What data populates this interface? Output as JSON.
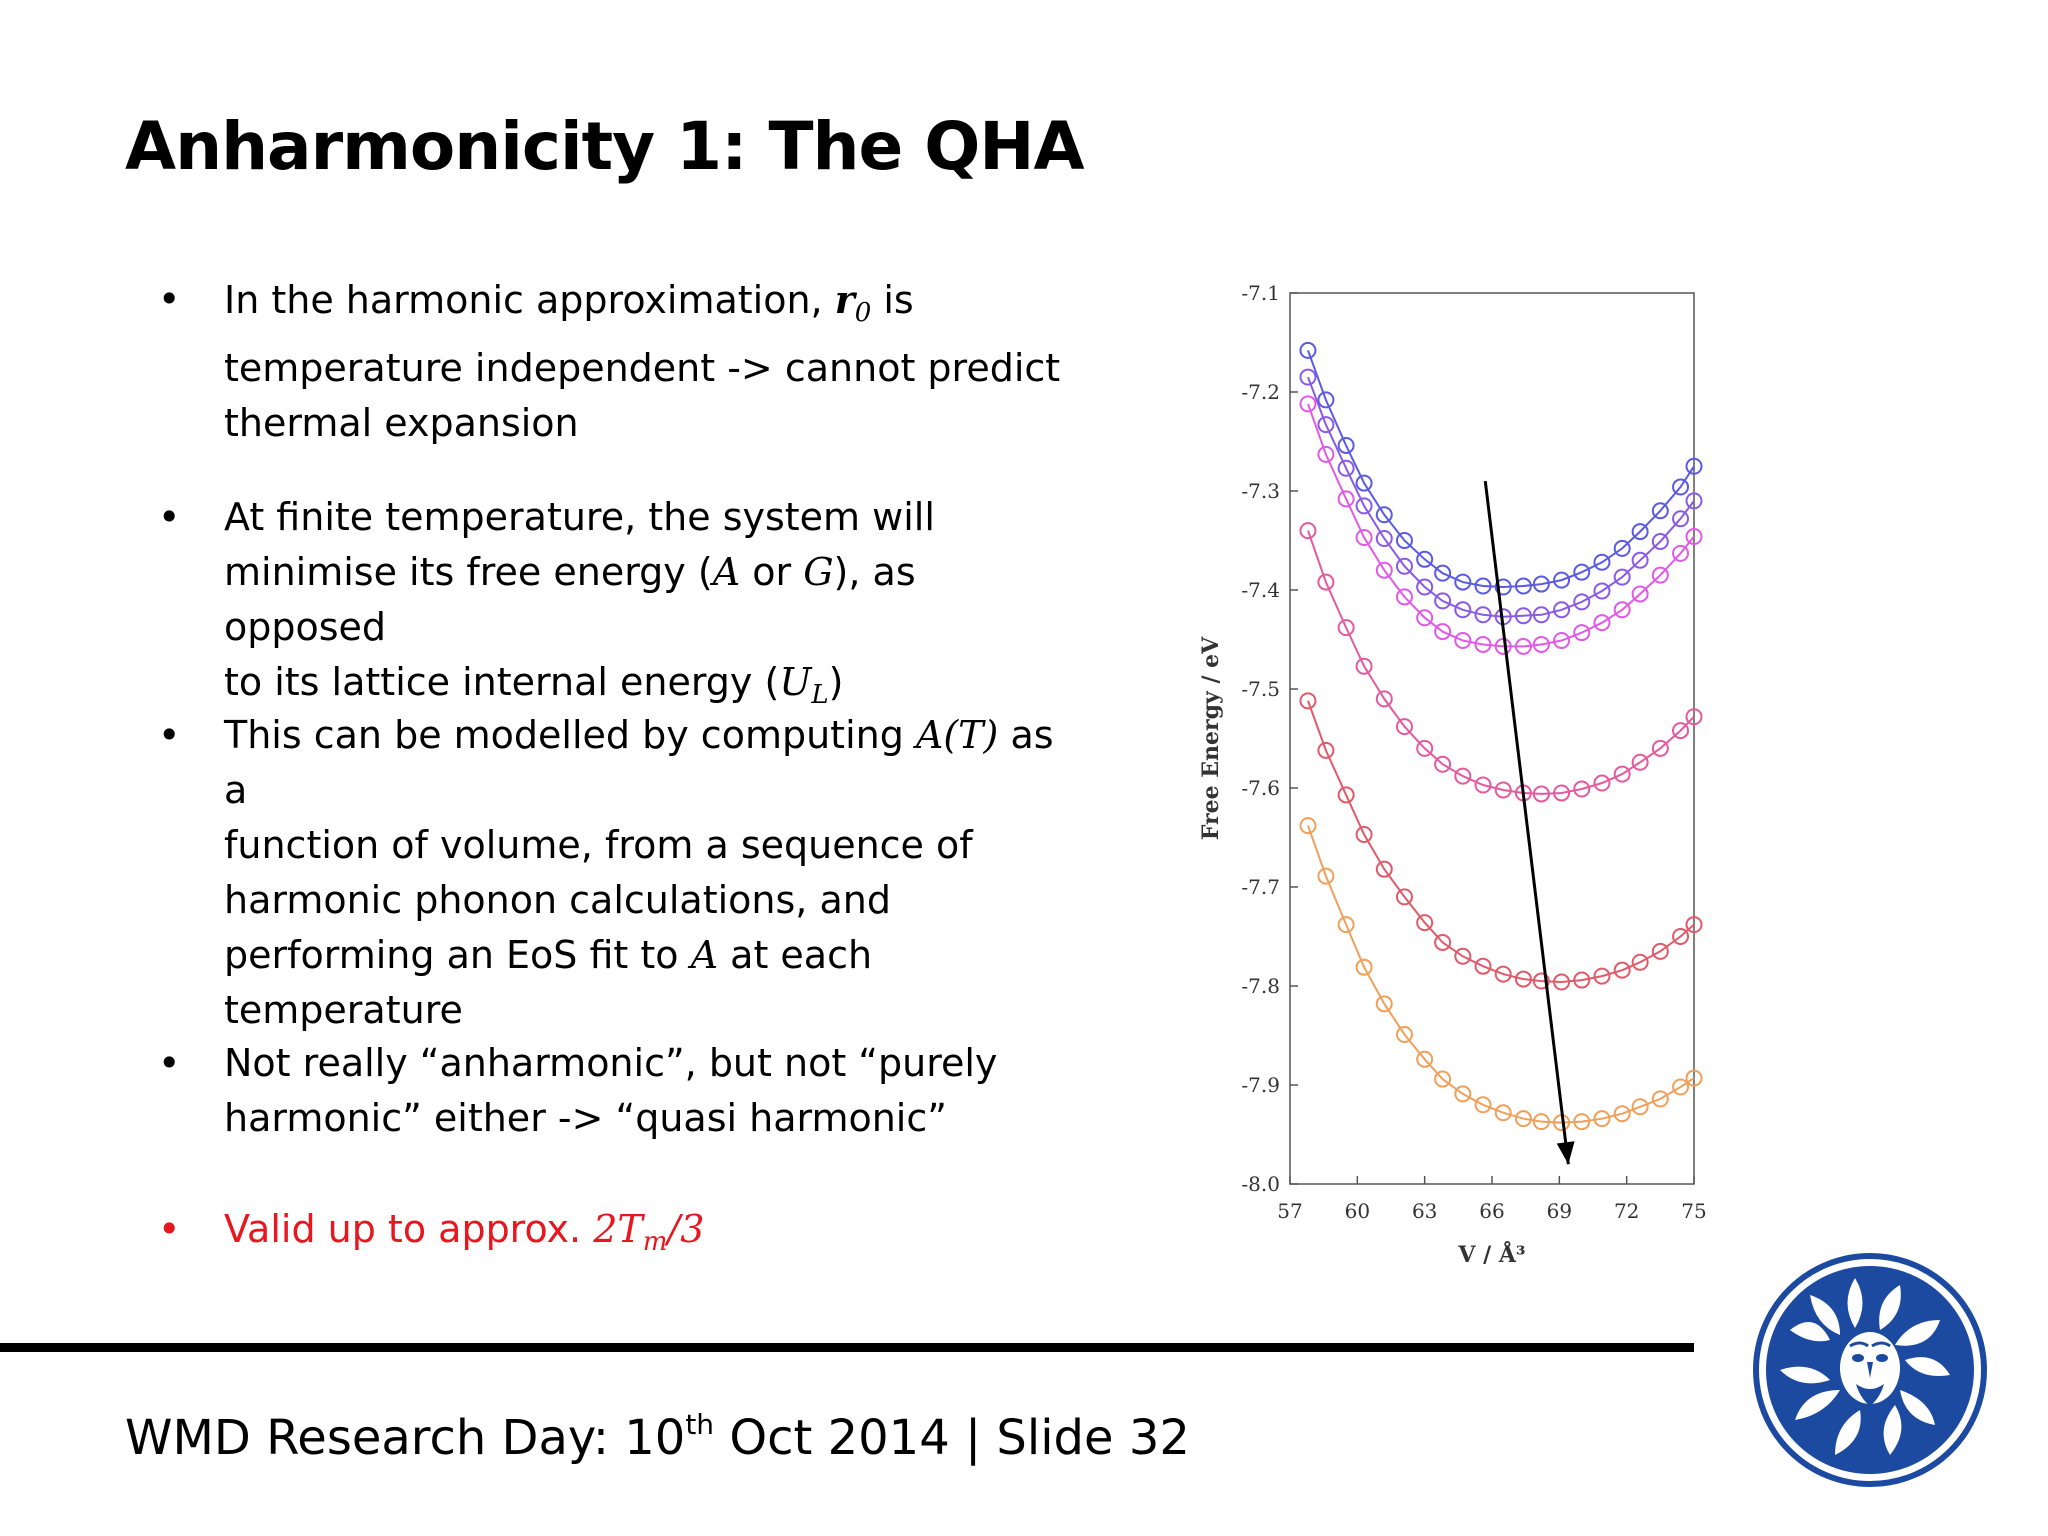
{
  "slide": {
    "title": "Anharmonicity 1: The QHA",
    "footer": {
      "prefix": "WMD Research Day: 10",
      "superscript": "th",
      "suffix": " Oct 2014 | Slide 32"
    }
  },
  "bullets": [
    {
      "marker": "•",
      "color": "#000000",
      "lines": [
        [
          {
            "t": "text",
            "v": "In the harmonic approximation, "
          },
          {
            "t": "mathb",
            "v": "r"
          },
          {
            "t": "sub",
            "v": "0"
          },
          {
            "t": "text",
            "v": " is"
          }
        ],
        [
          {
            "t": "text",
            "v": "temperature independent -> cannot predict"
          }
        ],
        [
          {
            "t": "text",
            "v": "thermal expansion"
          }
        ]
      ]
    },
    {
      "marker": "•",
      "color": "#000000",
      "lines": [
        [
          {
            "t": "text",
            "v": "At finite temperature, the system will"
          }
        ],
        [
          {
            "t": "text",
            "v": "minimise its free energy ("
          },
          {
            "t": "math",
            "v": "A"
          },
          {
            "t": "text",
            "v": " or "
          },
          {
            "t": "math",
            "v": "G"
          },
          {
            "t": "text",
            "v": "), as opposed"
          }
        ],
        [
          {
            "t": "text",
            "v": "to its lattice internal energy ("
          },
          {
            "t": "math",
            "v": "U"
          },
          {
            "t": "sub",
            "v": "L"
          },
          {
            "t": "text",
            "v": ")"
          }
        ]
      ]
    },
    {
      "marker": "•",
      "color": "#000000",
      "lines": [
        [
          {
            "t": "text",
            "v": "This can be modelled by computing "
          },
          {
            "t": "math",
            "v": "A(T)"
          },
          {
            "t": "text",
            "v": " as a"
          }
        ],
        [
          {
            "t": "text",
            "v": "function of volume, from a sequence of"
          }
        ],
        [
          {
            "t": "text",
            "v": "harmonic phonon calculations, and"
          }
        ],
        [
          {
            "t": "text",
            "v": "performing an EoS fit to "
          },
          {
            "t": "math",
            "v": "A"
          },
          {
            "t": "text",
            "v": " at each"
          }
        ],
        [
          {
            "t": "text",
            "v": "temperature"
          }
        ]
      ]
    },
    {
      "marker": "•",
      "color": "#000000",
      "lines": [
        [
          {
            "t": "text",
            "v": "Not really “anharmonic”, but not “purely"
          }
        ],
        [
          {
            "t": "text",
            "v": "harmonic” either -> “quasi harmonic”"
          }
        ]
      ]
    },
    {
      "marker": "•",
      "color": "#e8171f",
      "lines": [
        [
          {
            "t": "text",
            "v": "Valid up to approx. "
          },
          {
            "t": "math",
            "v": "2T"
          },
          {
            "t": "sub",
            "v": "m"
          },
          {
            "t": "math",
            "v": "/3"
          }
        ]
      ]
    }
  ],
  "chart_data": {
    "type": "line",
    "title": "",
    "xlabel": "V / Å³",
    "ylabel": "Free Energy / eV",
    "xlim": [
      57,
      75
    ],
    "ylim": [
      -8.0,
      -7.1
    ],
    "xticks": [
      "57",
      "60",
      "63",
      "66",
      "69",
      "72",
      "75"
    ],
    "yticks": [
      "-7.1",
      "-7.2",
      "-7.3",
      "-7.4",
      "-7.5",
      "-7.6",
      "-7.7",
      "-7.8",
      "-7.9",
      "-8.0"
    ],
    "grid": false,
    "legend": "none",
    "marker": "open-circle",
    "x": [
      57.8,
      58.6,
      59.5,
      60.3,
      61.2,
      62.1,
      63.0,
      63.8,
      64.7,
      65.6,
      66.5,
      67.4,
      68.2,
      69.1,
      70.0,
      70.9,
      71.8,
      72.6,
      73.5,
      74.4,
      75.0
    ],
    "series": [
      {
        "color": "#5a5ae6",
        "values": [
          -7.158,
          -7.208,
          -7.254,
          -7.292,
          -7.324,
          -7.35,
          -7.369,
          -7.383,
          -7.392,
          -7.396,
          -7.397,
          -7.396,
          -7.394,
          -7.39,
          -7.382,
          -7.372,
          -7.358,
          -7.341,
          -7.32,
          -7.296,
          -7.275
        ]
      },
      {
        "color": "#8a5ae6",
        "values": [
          -7.185,
          -7.233,
          -7.277,
          -7.315,
          -7.348,
          -7.376,
          -7.397,
          -7.411,
          -7.42,
          -7.425,
          -7.427,
          -7.426,
          -7.425,
          -7.42,
          -7.412,
          -7.401,
          -7.387,
          -7.37,
          -7.351,
          -7.328,
          -7.31
        ]
      },
      {
        "color": "#e15ae6",
        "values": [
          -7.212,
          -7.263,
          -7.308,
          -7.347,
          -7.38,
          -7.407,
          -7.428,
          -7.442,
          -7.451,
          -7.455,
          -7.457,
          -7.457,
          -7.455,
          -7.451,
          -7.443,
          -7.433,
          -7.42,
          -7.404,
          -7.385,
          -7.363,
          -7.346
        ]
      },
      {
        "color": "#e45a9e",
        "values": [
          -7.34,
          -7.392,
          -7.438,
          -7.477,
          -7.51,
          -7.538,
          -7.56,
          -7.576,
          -7.588,
          -7.597,
          -7.602,
          -7.605,
          -7.606,
          -7.605,
          -7.601,
          -7.595,
          -7.586,
          -7.574,
          -7.56,
          -7.542,
          -7.528
        ]
      },
      {
        "color": "#e05a6a",
        "values": [
          -7.512,
          -7.562,
          -7.607,
          -7.647,
          -7.682,
          -7.71,
          -7.736,
          -7.756,
          -7.77,
          -7.78,
          -7.788,
          -7.793,
          -7.795,
          -7.796,
          -7.794,
          -7.79,
          -7.784,
          -7.776,
          -7.765,
          -7.75,
          -7.738
        ]
      },
      {
        "color": "#f0a05a",
        "values": [
          -7.638,
          -7.689,
          -7.738,
          -7.781,
          -7.818,
          -7.849,
          -7.874,
          -7.894,
          -7.909,
          -7.92,
          -7.928,
          -7.934,
          -7.937,
          -7.938,
          -7.937,
          -7.934,
          -7.929,
          -7.922,
          -7.914,
          -7.902,
          -7.893
        ]
      }
    ],
    "annotation": {
      "type": "arrow",
      "from": [
        65.7,
        -7.29
      ],
      "to": [
        69.4,
        -7.98
      ],
      "color": "#000000"
    }
  }
}
